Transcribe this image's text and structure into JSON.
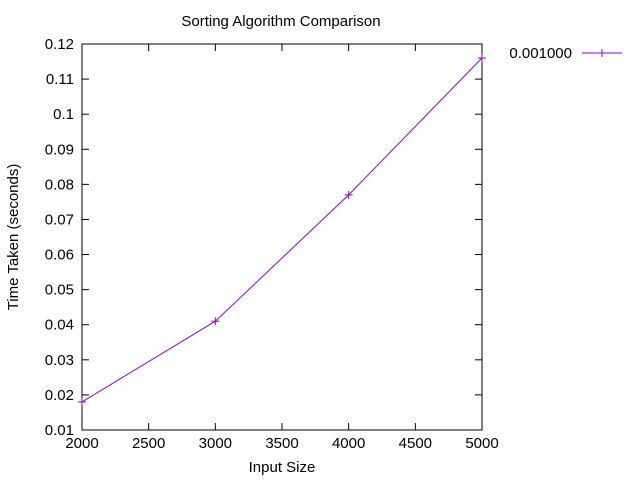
{
  "chart_data": {
    "type": "line",
    "title": "Sorting Algorithm Comparison",
    "xlabel": "Input Size",
    "ylabel": "Time Taken (seconds)",
    "xlim": [
      2000,
      5000
    ],
    "ylim": [
      0.01,
      0.12
    ],
    "x_ticks": [
      "2000",
      "2500",
      "3000",
      "3500",
      "4000",
      "4500",
      "5000"
    ],
    "y_ticks": [
      "0.01",
      "0.02",
      "0.03",
      "0.04",
      "0.05",
      "0.06",
      "0.07",
      "0.08",
      "0.09",
      "0.1",
      "0.11",
      "0.12"
    ],
    "grid": false,
    "legend_position": "top-right outside",
    "series": [
      {
        "name": "0.001000",
        "color": "#9400d3",
        "marker": "plus",
        "x": [
          2000,
          3000,
          4000,
          5000
        ],
        "y": [
          0.018,
          0.041,
          0.077,
          0.116
        ]
      }
    ]
  }
}
